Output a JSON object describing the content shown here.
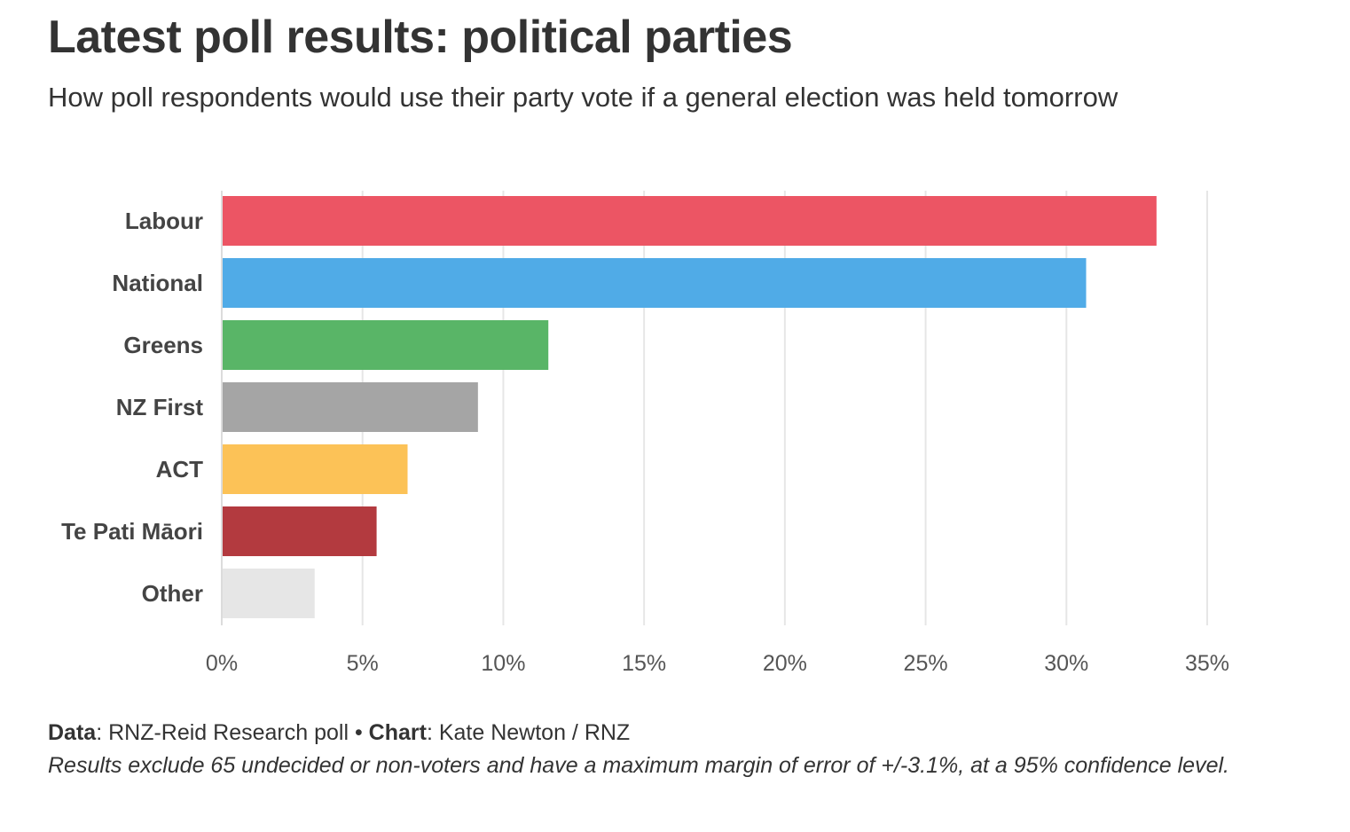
{
  "title": "Latest poll results: political parties",
  "subtitle": "How poll respondents would use their party vote if a general election was held tomorrow",
  "footer": {
    "data_label": "Data",
    "data_value": ": RNZ-Reid Research poll • ",
    "chart_label": "Chart",
    "chart_value": ": Kate Newton / RNZ",
    "note": "Results exclude 65 undecided or non-voters and have a maximum margin of error of +/-3.1%, at a 95% confidence level."
  },
  "chart_data": {
    "type": "bar",
    "orientation": "horizontal",
    "categories": [
      "Labour",
      "National",
      "Greens",
      "NZ First",
      "ACT",
      "Te Pati Māori",
      "Other"
    ],
    "values": [
      33.2,
      30.7,
      11.6,
      9.1,
      6.6,
      5.5,
      3.3
    ],
    "colors": [
      "#ec5564",
      "#50abe7",
      "#59b567",
      "#a5a5a5",
      "#fcc257",
      "#b33a3f",
      "#e6e6e6"
    ],
    "xlim": [
      0,
      35
    ],
    "xticks": [
      0,
      5,
      10,
      15,
      20,
      25,
      30,
      35
    ],
    "xtick_labels": [
      "0%",
      "5%",
      "10%",
      "15%",
      "20%",
      "25%",
      "30%",
      "35%"
    ],
    "grid": true,
    "grid_color": "#e6e6e6"
  }
}
